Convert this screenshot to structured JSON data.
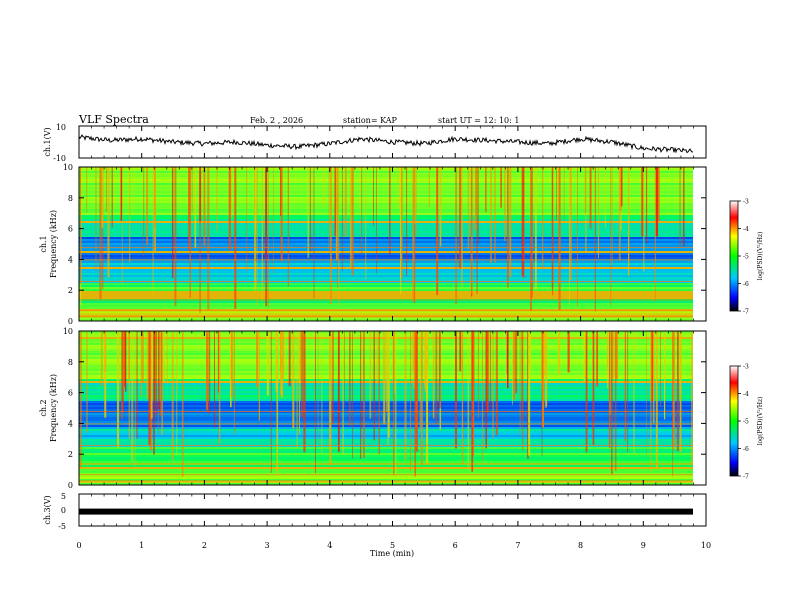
{
  "header": {
    "title": "VLF Spectra",
    "date": "Feb. 2 , 2026",
    "station": "station= KAP",
    "start": "start  UT  =   12: 10: 1"
  },
  "chart_data": [
    {
      "type": "line",
      "name": "ch1-waveform",
      "ylabel": "ch.1(V)",
      "ylim": [
        -10,
        10
      ],
      "yticks": [
        "10",
        "-10"
      ],
      "xlim": [
        0,
        10
      ],
      "series_envelope": {
        "x": [
          0,
          0.5,
          1,
          1.5,
          2,
          2.5,
          3,
          3.5,
          4,
          4.5,
          5,
          5.5,
          6,
          6.5,
          7,
          7.5,
          8,
          8.5,
          9,
          9.5,
          9.8
        ],
        "y": [
          3,
          1,
          2,
          0,
          -1,
          0,
          -2,
          -3,
          -1,
          2,
          0,
          -1,
          2,
          1,
          0,
          -1,
          2,
          0,
          -4,
          -5,
          -6
        ]
      }
    },
    {
      "type": "heatmap",
      "name": "ch1-spectrogram",
      "ylabel": "Frequency  (kHz)",
      "channel": "ch.1",
      "ylim": [
        0,
        10
      ],
      "yticks": [
        "0",
        "2",
        "4",
        "6",
        "8",
        "10"
      ],
      "xlim": [
        0,
        9.8
      ]
    },
    {
      "type": "heatmap",
      "name": "ch2-spectrogram",
      "ylabel": "Frequency  (kHz)",
      "channel": "ch.2",
      "ylim": [
        0,
        10
      ],
      "yticks": [
        "0",
        "2",
        "4",
        "6",
        "8",
        "10"
      ],
      "xlim": [
        0,
        9.8
      ]
    },
    {
      "type": "line",
      "name": "ch3-waveform",
      "ylabel": "ch.3(V)",
      "ylim": [
        -5,
        5
      ],
      "yticks": [
        "5",
        "0",
        "-5"
      ],
      "constant_value": -0.5,
      "xlim": [
        0,
        10
      ]
    }
  ],
  "colorbar": {
    "label": "log(PSD)(V²/Hz)",
    "range": [
      -7,
      -3
    ],
    "ticks": [
      "-3",
      "-4",
      "-5",
      "-6",
      "-7"
    ]
  },
  "xaxis": {
    "label": "Time  (min)",
    "range": [
      0,
      10
    ],
    "ticks": [
      "0",
      "1",
      "2",
      "3",
      "4",
      "5",
      "6",
      "7",
      "8",
      "9",
      "10"
    ]
  }
}
